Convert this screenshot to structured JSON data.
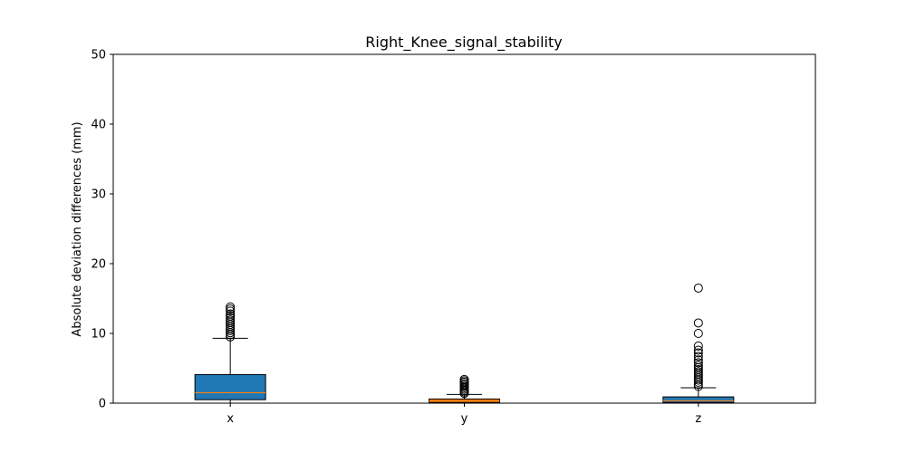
{
  "chart_data": {
    "type": "box",
    "title": "Right_Knee_signal_stability",
    "xlabel": "",
    "ylabel": "Absolute deviation differences (mm)",
    "ylim": [
      0,
      50
    ],
    "yticks": [
      "0",
      "10",
      "20",
      "30",
      "40",
      "50"
    ],
    "categories": [
      "x",
      "y",
      "z"
    ],
    "grid": false,
    "boxes": [
      {
        "category": "x",
        "color": "#1f77b4",
        "whisker_low": 0.0,
        "q1": 0.5,
        "median": 1.5,
        "q3": 4.1,
        "whisker_high": 9.3,
        "outliers": [
          9.5,
          9.8,
          10.1,
          10.4,
          10.7,
          11.0,
          11.3,
          11.6,
          11.9,
          12.2,
          12.5,
          12.8,
          13.2,
          13.5,
          13.8
        ]
      },
      {
        "category": "y",
        "color": "#ff7f0e",
        "whisker_low": 0.0,
        "q1": 0.1,
        "median": 0.3,
        "q3": 0.6,
        "whisker_high": 1.25,
        "outliers": [
          1.4,
          1.6,
          1.8,
          2.0,
          2.2,
          2.4,
          2.6,
          2.8,
          3.0,
          3.2,
          3.4
        ]
      },
      {
        "category": "z",
        "color": "#1f77b4",
        "whisker_low": 0.0,
        "q1": 0.1,
        "median": 0.35,
        "q3": 0.9,
        "whisker_high": 2.2,
        "outliers": [
          2.4,
          2.7,
          3.0,
          3.3,
          3.6,
          3.9,
          4.2,
          4.5,
          4.8,
          5.1,
          5.4,
          5.8,
          6.2,
          6.7,
          7.2,
          7.6,
          8.2,
          10.0,
          11.5,
          16.5
        ]
      }
    ]
  }
}
